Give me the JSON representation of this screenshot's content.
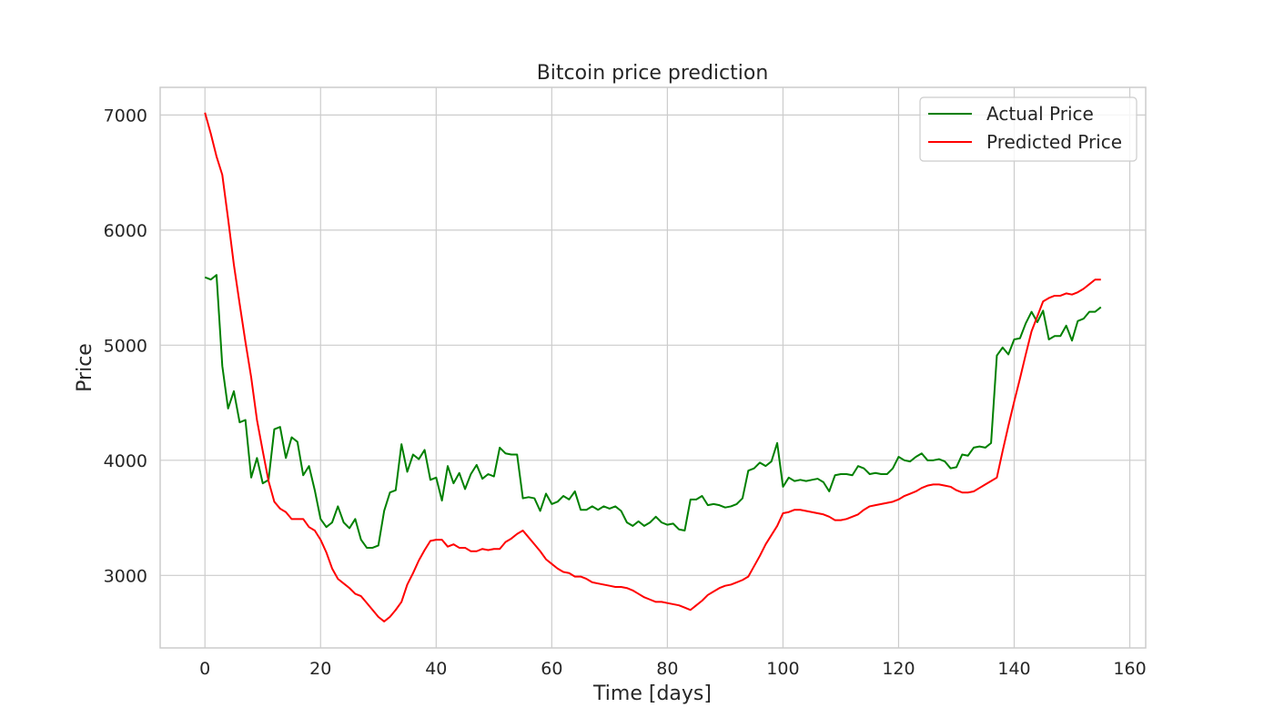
{
  "chart_data": {
    "type": "line",
    "title": "Bitcoin price prediction",
    "xlabel": "Time [days]",
    "ylabel": "Price",
    "xlim": [
      -7.75,
      162.75
    ],
    "ylim": [
      2370,
      7240
    ],
    "xticks": [
      0,
      20,
      40,
      60,
      80,
      100,
      120,
      140,
      160
    ],
    "yticks": [
      3000,
      4000,
      5000,
      6000,
      7000
    ],
    "grid": true,
    "legend_position": "top-right",
    "series": [
      {
        "name": "Actual Price",
        "color": "#008000",
        "values": [
          5590,
          5570,
          5610,
          4820,
          4450,
          4600,
          4330,
          4350,
          3850,
          4020,
          3800,
          3830,
          4270,
          4290,
          4020,
          4200,
          4160,
          3870,
          3950,
          3740,
          3490,
          3420,
          3460,
          3600,
          3460,
          3410,
          3490,
          3310,
          3240,
          3240,
          3260,
          3560,
          3720,
          3740,
          4140,
          3900,
          4050,
          4010,
          4090,
          3830,
          3850,
          3650,
          3950,
          3800,
          3890,
          3750,
          3880,
          3960,
          3840,
          3880,
          3860,
          4110,
          4060,
          4050,
          4050,
          3670,
          3680,
          3670,
          3560,
          3710,
          3620,
          3640,
          3690,
          3660,
          3730,
          3570,
          3570,
          3600,
          3570,
          3600,
          3580,
          3600,
          3560,
          3460,
          3430,
          3470,
          3430,
          3460,
          3510,
          3460,
          3440,
          3450,
          3400,
          3390,
          3660,
          3660,
          3690,
          3610,
          3620,
          3610,
          3590,
          3600,
          3620,
          3670,
          3910,
          3930,
          3980,
          3950,
          3990,
          4150,
          3770,
          3850,
          3820,
          3830,
          3820,
          3830,
          3840,
          3810,
          3730,
          3870,
          3880,
          3880,
          3870,
          3950,
          3930,
          3880,
          3890,
          3880,
          3880,
          3930,
          4030,
          4000,
          3990,
          4030,
          4060,
          4000,
          4000,
          4010,
          3990,
          3930,
          3940,
          4050,
          4040,
          4110,
          4120,
          4110,
          4150,
          4910,
          4980,
          4920,
          5050,
          5060,
          5190,
          5290,
          5200,
          5300,
          5050,
          5080,
          5080,
          5170,
          5040,
          5210,
          5230,
          5290,
          5290,
          5330
        ]
      },
      {
        "name": "Predicted Price",
        "color": "#ff0000",
        "values": [
          7020,
          6840,
          6640,
          6480,
          6100,
          5700,
          5360,
          5030,
          4720,
          4350,
          4080,
          3820,
          3640,
          3580,
          3550,
          3490,
          3490,
          3490,
          3420,
          3390,
          3310,
          3200,
          3060,
          2970,
          2930,
          2890,
          2840,
          2820,
          2760,
          2700,
          2640,
          2600,
          2640,
          2700,
          2770,
          2920,
          3020,
          3130,
          3220,
          3300,
          3310,
          3310,
          3250,
          3270,
          3240,
          3240,
          3210,
          3210,
          3230,
          3220,
          3230,
          3230,
          3290,
          3320,
          3360,
          3390,
          3330,
          3270,
          3210,
          3140,
          3100,
          3060,
          3030,
          3020,
          2990,
          2990,
          2970,
          2940,
          2930,
          2920,
          2910,
          2900,
          2900,
          2890,
          2870,
          2840,
          2810,
          2790,
          2770,
          2770,
          2760,
          2750,
          2740,
          2720,
          2700,
          2740,
          2780,
          2830,
          2860,
          2890,
          2910,
          2920,
          2940,
          2960,
          2990,
          3080,
          3170,
          3270,
          3350,
          3430,
          3540,
          3550,
          3570,
          3570,
          3560,
          3550,
          3540,
          3530,
          3510,
          3480,
          3480,
          3490,
          3510,
          3530,
          3570,
          3600,
          3610,
          3620,
          3630,
          3640,
          3660,
          3690,
          3710,
          3730,
          3760,
          3780,
          3790,
          3790,
          3780,
          3770,
          3740,
          3720,
          3720,
          3730,
          3760,
          3790,
          3820,
          3850,
          4080,
          4300,
          4510,
          4710,
          4920,
          5120,
          5250,
          5380,
          5410,
          5430,
          5430,
          5450,
          5440,
          5460,
          5490,
          5530,
          5570,
          5570
        ]
      }
    ]
  }
}
